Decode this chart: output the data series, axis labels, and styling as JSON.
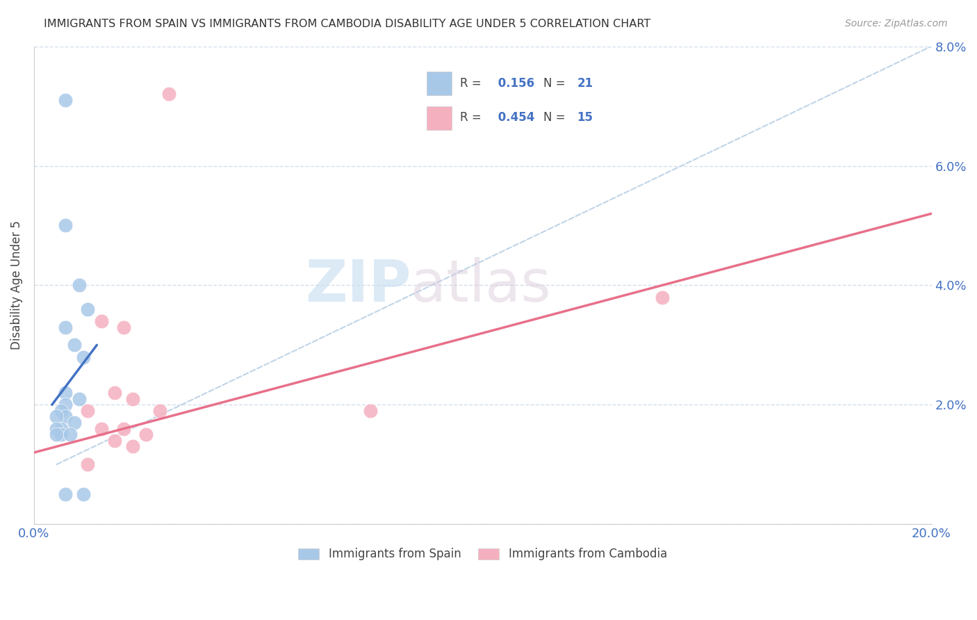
{
  "title": "IMMIGRANTS FROM SPAIN VS IMMIGRANTS FROM CAMBODIA DISABILITY AGE UNDER 5 CORRELATION CHART",
  "source": "Source: ZipAtlas.com",
  "ylabel": "Disability Age Under 5",
  "xlim": [
    0.0,
    0.2
  ],
  "ylim": [
    0.0,
    0.08
  ],
  "xticks": [
    0.0,
    0.04,
    0.08,
    0.12,
    0.16,
    0.2
  ],
  "yticks": [
    0.0,
    0.02,
    0.04,
    0.06,
    0.08
  ],
  "xtick_labels": [
    "0.0%",
    "",
    "",
    "",
    "",
    "20.0%"
  ],
  "ytick_labels_right": [
    "",
    "2.0%",
    "4.0%",
    "6.0%",
    "8.0%"
  ],
  "spain_R": 0.156,
  "spain_N": 21,
  "cambodia_R": 0.454,
  "cambodia_N": 15,
  "spain_color": "#a8c8e8",
  "cambodia_color": "#f5b0c0",
  "spain_line_color": "#4472C4",
  "cambodia_line_color": "#e8708a",
  "dashed_line_color": "#c0d4e8",
  "watermark_zip": "ZIP",
  "watermark_atlas": "atlas",
  "spain_points": [
    [
      0.007,
      0.071
    ],
    [
      0.007,
      0.05
    ],
    [
      0.01,
      0.04
    ],
    [
      0.012,
      0.036
    ],
    [
      0.007,
      0.033
    ],
    [
      0.009,
      0.03
    ],
    [
      0.011,
      0.028
    ],
    [
      0.007,
      0.022
    ],
    [
      0.01,
      0.021
    ],
    [
      0.007,
      0.02
    ],
    [
      0.006,
      0.019
    ],
    [
      0.007,
      0.018
    ],
    [
      0.005,
      0.018
    ],
    [
      0.009,
      0.017
    ],
    [
      0.006,
      0.016
    ],
    [
      0.005,
      0.016
    ],
    [
      0.006,
      0.015
    ],
    [
      0.005,
      0.015
    ],
    [
      0.008,
      0.015
    ],
    [
      0.007,
      0.005
    ],
    [
      0.011,
      0.005
    ]
  ],
  "cambodia_points": [
    [
      0.03,
      0.072
    ],
    [
      0.015,
      0.034
    ],
    [
      0.02,
      0.033
    ],
    [
      0.018,
      0.022
    ],
    [
      0.022,
      0.021
    ],
    [
      0.012,
      0.019
    ],
    [
      0.015,
      0.016
    ],
    [
      0.02,
      0.016
    ],
    [
      0.025,
      0.015
    ],
    [
      0.018,
      0.014
    ],
    [
      0.022,
      0.013
    ],
    [
      0.012,
      0.01
    ],
    [
      0.028,
      0.019
    ],
    [
      0.14,
      0.038
    ],
    [
      0.075,
      0.019
    ]
  ],
  "spain_line": [
    [
      0.004,
      0.02
    ],
    [
      0.014,
      0.03
    ]
  ],
  "cambodia_line": [
    [
      0.0,
      0.012
    ],
    [
      0.2,
      0.052
    ]
  ],
  "dashed_line": [
    [
      0.005,
      0.01
    ],
    [
      0.2,
      0.08
    ]
  ]
}
